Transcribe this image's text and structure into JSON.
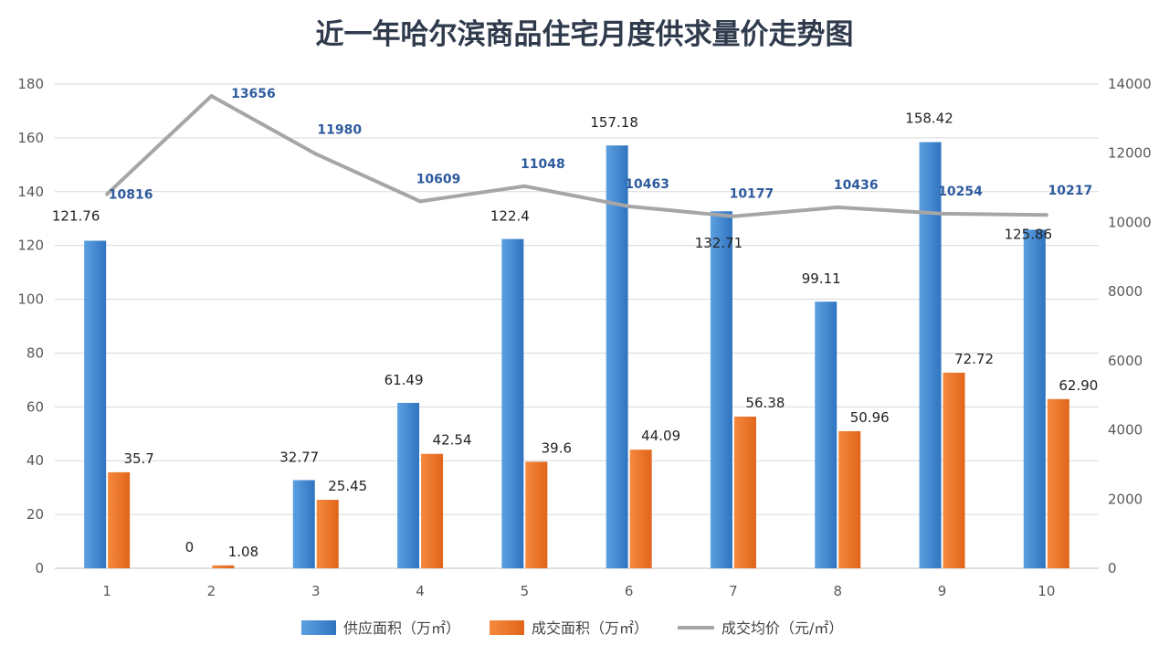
{
  "chart_data": {
    "type": "bar",
    "title": "近一年哈尔滨商品住宅月度供求量价走势图",
    "categories": [
      "1",
      "2",
      "3",
      "4",
      "5",
      "6",
      "7",
      "8",
      "9",
      "10"
    ],
    "series": [
      {
        "name": "供应面积（万㎡）",
        "type": "bar",
        "axis": "left",
        "color": "#3d86d1",
        "values": [
          121.76,
          0,
          32.77,
          61.49,
          122.4,
          157.18,
          132.71,
          99.11,
          158.42,
          125.86
        ],
        "labels": [
          "121.76",
          "0",
          "32.77",
          "61.49",
          "122.4",
          "157.18",
          "132.71",
          "99.11",
          "158.42",
          "125.86"
        ]
      },
      {
        "name": "成交面积（万㎡）",
        "type": "bar",
        "axis": "left",
        "color": "#ee7326",
        "values": [
          35.7,
          1.08,
          25.45,
          42.54,
          39.6,
          44.09,
          56.38,
          50.96,
          72.72,
          62.9
        ],
        "labels": [
          "35.7",
          "1.08",
          "25.45",
          "42.54",
          "39.6",
          "44.09",
          "56.38",
          "50.96",
          "72.72",
          "62.90"
        ]
      },
      {
        "name": "成交均价（元/㎡）",
        "type": "line",
        "axis": "right",
        "color": "#a6a6a6",
        "values": [
          10816,
          13656,
          11980,
          10609,
          11048,
          10463,
          10177,
          10436,
          10254,
          10217
        ],
        "labels": [
          "10816",
          "13656",
          "11980",
          "10609",
          "11048",
          "10463",
          "10177",
          "10436",
          "10254",
          "10217"
        ]
      }
    ],
    "y_left": {
      "min": 0,
      "max": 180,
      "ticks": [
        "0",
        "20",
        "40",
        "60",
        "80",
        "100",
        "120",
        "140",
        "160",
        "180"
      ]
    },
    "y_right": {
      "min": 0,
      "max": 14000,
      "ticks": [
        "0",
        "2000",
        "4000",
        "6000",
        "8000",
        "10000",
        "12000",
        "14000"
      ]
    },
    "grid": true,
    "legend_position": "bottom"
  }
}
